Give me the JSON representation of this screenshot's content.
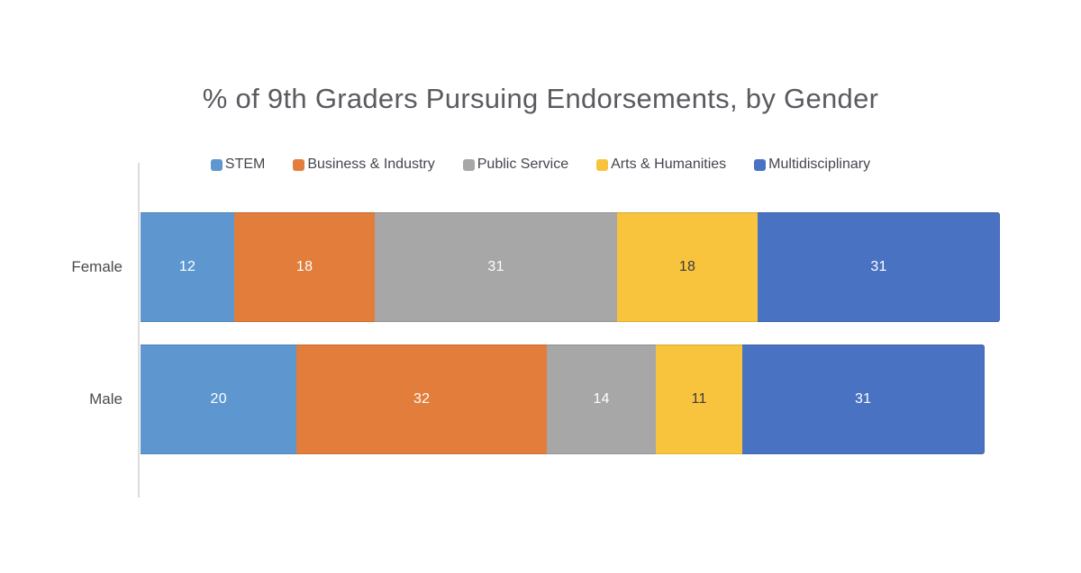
{
  "chart_data": {
    "type": "bar",
    "orientation": "horizontal",
    "stacked": true,
    "title": "% of 9th Graders Pursuing Endorsements, by Gender",
    "categories": [
      "Female",
      "Male"
    ],
    "series": [
      {
        "name": "STEM",
        "color": "#5E97D0",
        "label_color": "#ffffff",
        "values": [
          12,
          20
        ]
      },
      {
        "name": "Business & Industry",
        "color": "#E27D3B",
        "label_color": "#ffffff",
        "values": [
          18,
          32
        ]
      },
      {
        "name": "Public Service",
        "color": "#A7A7A7",
        "label_color": "#ffffff",
        "values": [
          31,
          14
        ]
      },
      {
        "name": "Arts & Humanities",
        "color": "#F9C43D",
        "label_color": "#3a3b42",
        "values": [
          18,
          11
        ]
      },
      {
        "name": "Multidisciplinary",
        "color": "#4972C2",
        "label_color": "#ffffff",
        "values": [
          31,
          31
        ]
      }
    ],
    "xlabel": "",
    "ylabel": "",
    "xlim": [
      0,
      110
    ],
    "data_labels": true,
    "grid": false,
    "legend_position": "top"
  }
}
